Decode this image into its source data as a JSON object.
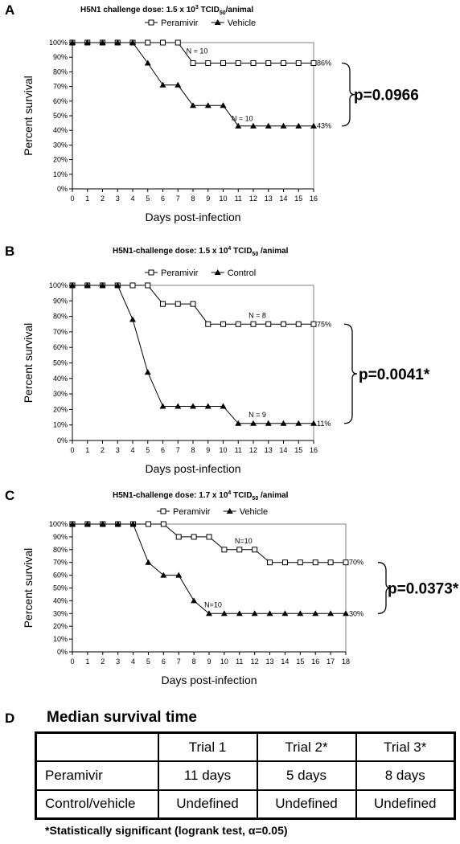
{
  "chart_data": [
    {
      "type": "line",
      "panel": "A",
      "title_parts": [
        "H5N1 challenge dose: 1.5 x 10",
        "3",
        " TCID",
        "50",
        "/animal"
      ],
      "xlabel": "Days post-infection",
      "ylabel": "Percent survival",
      "x": [
        0,
        1,
        2,
        3,
        4,
        5,
        6,
        7,
        8,
        9,
        10,
        11,
        12,
        13,
        14,
        15,
        16
      ],
      "xlim": [
        0,
        16
      ],
      "ylim": [
        0,
        100
      ],
      "yticks": [
        "0%",
        "10%",
        "20%",
        "30%",
        "40%",
        "50%",
        "60%",
        "70%",
        "80%",
        "90%",
        "100%"
      ],
      "legend_position": "top-center",
      "series": [
        {
          "name": "Peramivir",
          "marker": "open-square",
          "values": [
            100,
            100,
            100,
            100,
            100,
            100,
            100,
            100,
            86,
            86,
            86,
            86,
            86,
            86,
            86,
            86,
            86
          ],
          "end_label": "86%",
          "n_label": "N = 10"
        },
        {
          "name": "Vehicle",
          "marker": "filled-triangle",
          "values": [
            100,
            100,
            100,
            100,
            100,
            86,
            71,
            71,
            57,
            57,
            57,
            43,
            43,
            43,
            43,
            43,
            43
          ],
          "end_label": "43%",
          "n_label": "N = 10"
        }
      ],
      "p_value": "p=0.0966"
    },
    {
      "type": "line",
      "panel": "B",
      "title_parts": [
        "H5N1-challenge dose: 1.5 x 10",
        "4",
        " TCID",
        "50",
        " /animal"
      ],
      "xlabel": "Days post-infection",
      "ylabel": "Percent survival",
      "x": [
        0,
        1,
        2,
        3,
        4,
        5,
        6,
        7,
        8,
        9,
        10,
        11,
        12,
        13,
        14,
        15,
        16
      ],
      "xlim": [
        0,
        16
      ],
      "ylim": [
        0,
        100
      ],
      "yticks": [
        "0%",
        "10%",
        "20%",
        "30%",
        "40%",
        "50%",
        "60%",
        "70%",
        "80%",
        "90%",
        "100%"
      ],
      "legend_position": "top-center",
      "series": [
        {
          "name": "Peramivir",
          "marker": "open-square",
          "values": [
            100,
            100,
            100,
            100,
            100,
            100,
            88,
            88,
            88,
            75,
            75,
            75,
            75,
            75,
            75,
            75,
            75
          ],
          "end_label": "75%",
          "n_label": "N = 8"
        },
        {
          "name": "Control",
          "marker": "filled-triangle",
          "values": [
            100,
            100,
            100,
            100,
            78,
            44,
            22,
            22,
            22,
            22,
            22,
            11,
            11,
            11,
            11,
            11,
            11
          ],
          "end_label": "11%",
          "n_label": "N = 9"
        }
      ],
      "p_value": "p=0.0041*"
    },
    {
      "type": "line",
      "panel": "C",
      "title_parts": [
        "H5N1-challenge dose: 1.7 x 10",
        "4",
        " TCID",
        "50",
        " /animal"
      ],
      "xlabel": "Days post-infection",
      "ylabel": "Percent survival",
      "x": [
        0,
        1,
        2,
        3,
        4,
        5,
        6,
        7,
        8,
        9,
        10,
        11,
        12,
        13,
        14,
        15,
        16,
        17,
        18
      ],
      "xlim": [
        0,
        18
      ],
      "ylim": [
        0,
        100
      ],
      "yticks": [
        "0%",
        "10%",
        "20%",
        "30%",
        "40%",
        "50%",
        "60%",
        "70%",
        "80%",
        "90%",
        "100%"
      ],
      "legend_position": "top-center",
      "series": [
        {
          "name": "Peramivir",
          "marker": "open-square",
          "values": [
            100,
            100,
            100,
            100,
            100,
            100,
            100,
            90,
            90,
            90,
            80,
            80,
            80,
            70,
            70,
            70,
            70,
            70,
            70
          ],
          "end_label": "70%",
          "n_label": "N=10"
        },
        {
          "name": "Vehicle",
          "marker": "filled-triangle",
          "values": [
            100,
            100,
            100,
            100,
            100,
            70,
            60,
            60,
            40,
            30,
            30,
            30,
            30,
            30,
            30,
            30,
            30,
            30,
            30
          ],
          "end_label": "30%",
          "n_label": "N=10"
        }
      ],
      "p_value": "p=0.0373*"
    }
  ],
  "section_d": {
    "letter": "D",
    "title": "Median survival time",
    "table": {
      "header": [
        "",
        "Trial 1",
        "Trial 2*",
        "Trial 3*"
      ],
      "rows": [
        [
          "Peramivir",
          "11 days",
          "5 days",
          "8 days"
        ],
        [
          "Control/vehicle",
          "Undefined",
          "Undefined",
          "Undefined"
        ]
      ]
    },
    "footnote": "*Statistically significant (logrank test, α=0.05)"
  }
}
